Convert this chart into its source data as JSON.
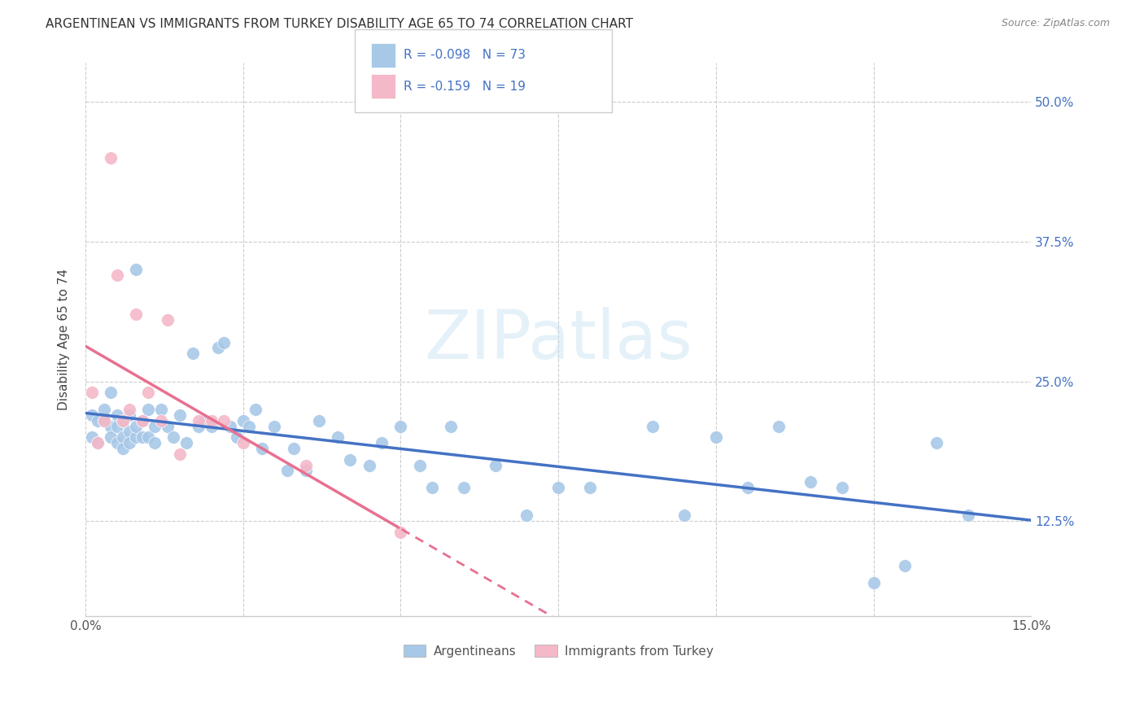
{
  "title": "ARGENTINEAN VS IMMIGRANTS FROM TURKEY DISABILITY AGE 65 TO 74 CORRELATION CHART",
  "source": "Source: ZipAtlas.com",
  "ylabel": "Disability Age 65 to 74",
  "yticks_labels": [
    "12.5%",
    "25.0%",
    "37.5%",
    "50.0%"
  ],
  "ytick_vals": [
    0.125,
    0.25,
    0.375,
    0.5
  ],
  "xmin": 0.0,
  "xmax": 0.15,
  "ymin": 0.04,
  "ymax": 0.535,
  "r_argentinean": -0.098,
  "n_argentinean": 73,
  "r_turkey": -0.159,
  "n_turkey": 19,
  "color_argentinean": "#a8c8e8",
  "color_turkey": "#f4b8c8",
  "color_line_argentinean": "#4472c4",
  "color_line_turkey": "#e87090",
  "color_text_blue": "#4472c4",
  "background_color": "#ffffff",
  "scatter_argentinean_x": [
    0.001,
    0.001,
    0.002,
    0.002,
    0.003,
    0.003,
    0.004,
    0.004,
    0.004,
    0.005,
    0.005,
    0.005,
    0.006,
    0.006,
    0.006,
    0.007,
    0.007,
    0.007,
    0.008,
    0.008,
    0.008,
    0.009,
    0.009,
    0.01,
    0.01,
    0.011,
    0.011,
    0.012,
    0.013,
    0.014,
    0.015,
    0.016,
    0.017,
    0.018,
    0.019,
    0.02,
    0.021,
    0.022,
    0.023,
    0.024,
    0.025,
    0.026,
    0.027,
    0.028,
    0.03,
    0.032,
    0.033,
    0.035,
    0.037,
    0.04,
    0.042,
    0.045,
    0.047,
    0.05,
    0.053,
    0.055,
    0.058,
    0.06,
    0.065,
    0.07,
    0.075,
    0.08,
    0.09,
    0.095,
    0.1,
    0.105,
    0.11,
    0.115,
    0.12,
    0.125,
    0.13,
    0.135,
    0.14
  ],
  "scatter_argentinean_y": [
    0.22,
    0.2,
    0.215,
    0.195,
    0.215,
    0.225,
    0.21,
    0.2,
    0.24,
    0.22,
    0.195,
    0.21,
    0.2,
    0.19,
    0.215,
    0.205,
    0.195,
    0.22,
    0.35,
    0.2,
    0.21,
    0.2,
    0.215,
    0.225,
    0.2,
    0.195,
    0.21,
    0.225,
    0.21,
    0.2,
    0.22,
    0.195,
    0.275,
    0.21,
    0.215,
    0.21,
    0.28,
    0.285,
    0.21,
    0.2,
    0.215,
    0.21,
    0.225,
    0.19,
    0.21,
    0.17,
    0.19,
    0.17,
    0.215,
    0.2,
    0.18,
    0.175,
    0.195,
    0.21,
    0.175,
    0.155,
    0.21,
    0.155,
    0.175,
    0.13,
    0.155,
    0.155,
    0.21,
    0.13,
    0.2,
    0.155,
    0.21,
    0.16,
    0.155,
    0.07,
    0.085,
    0.195,
    0.13
  ],
  "scatter_turkey_x": [
    0.001,
    0.002,
    0.003,
    0.004,
    0.005,
    0.006,
    0.007,
    0.008,
    0.009,
    0.01,
    0.012,
    0.013,
    0.015,
    0.018,
    0.02,
    0.022,
    0.025,
    0.035,
    0.05
  ],
  "scatter_turkey_y": [
    0.24,
    0.195,
    0.215,
    0.45,
    0.345,
    0.215,
    0.225,
    0.31,
    0.215,
    0.24,
    0.215,
    0.305,
    0.185,
    0.215,
    0.215,
    0.215,
    0.195,
    0.175,
    0.115
  ]
}
